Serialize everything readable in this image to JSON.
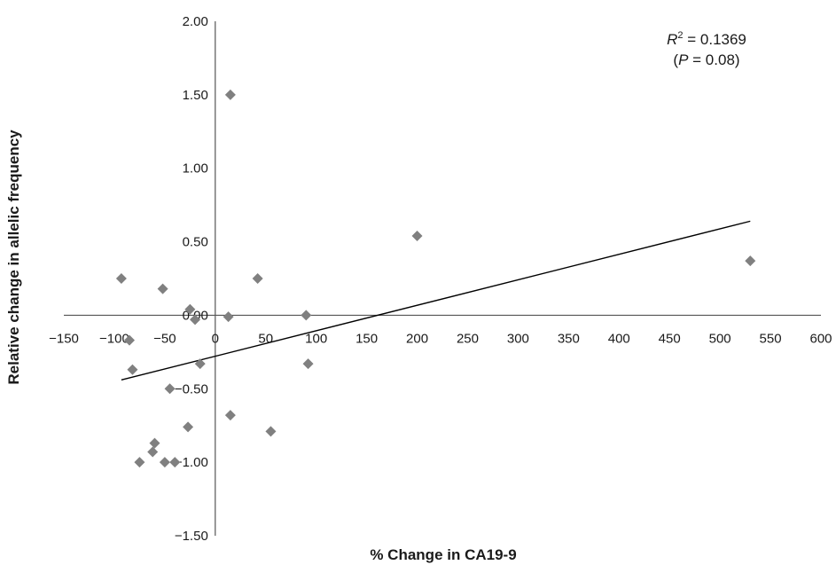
{
  "chart_data": {
    "type": "scatter",
    "title": "",
    "xlabel": "% Change in CA19-9",
    "ylabel": "Relative change in allelic frequency",
    "xlim": [
      -150,
      600
    ],
    "ylim": [
      -1.5,
      2.0
    ],
    "x_ticks": [
      "−150",
      "−100",
      "−50",
      "0",
      "50",
      "100",
      "150",
      "200",
      "250",
      "300",
      "350",
      "400",
      "450",
      "500",
      "550",
      "600"
    ],
    "y_ticks": [
      "2.00",
      "1.50",
      "1.00",
      "0.50",
      "0.00",
      "−0.50",
      "−1.00",
      "−1.50"
    ],
    "grid": false,
    "legend": "none",
    "marker": "diamond",
    "marker_color": "#808080",
    "line_color": "#000000",
    "points": [
      {
        "x": -93,
        "y": 0.25
      },
      {
        "x": -85,
        "y": -0.17
      },
      {
        "x": -82,
        "y": -0.37
      },
      {
        "x": -75,
        "y": -1.0
      },
      {
        "x": -62,
        "y": -0.93
      },
      {
        "x": -60,
        "y": -0.87
      },
      {
        "x": -52,
        "y": 0.18
      },
      {
        "x": -50,
        "y": -1.0
      },
      {
        "x": -45,
        "y": -0.5
      },
      {
        "x": -40,
        "y": -1.0
      },
      {
        "x": -27,
        "y": -0.76
      },
      {
        "x": -25,
        "y": 0.04
      },
      {
        "x": -20,
        "y": -0.03
      },
      {
        "x": -15,
        "y": -0.33
      },
      {
        "x": 13,
        "y": -0.01
      },
      {
        "x": 15,
        "y": 1.5
      },
      {
        "x": 15,
        "y": -0.68
      },
      {
        "x": 42,
        "y": 0.25
      },
      {
        "x": 55,
        "y": -0.79
      },
      {
        "x": 90,
        "y": 0.0
      },
      {
        "x": 92,
        "y": -0.33
      },
      {
        "x": 200,
        "y": 0.54
      },
      {
        "x": 530,
        "y": 0.37
      }
    ],
    "trendline": {
      "x": [
        -93,
        530
      ],
      "y": [
        -0.44,
        0.64
      ]
    },
    "annotation": {
      "line1": {
        "prefix": "R",
        "sup": "2",
        "suffix": " = 0.1369"
      },
      "line2": {
        "open": "(",
        "var": "P",
        "rest": " = 0.08)"
      }
    }
  }
}
